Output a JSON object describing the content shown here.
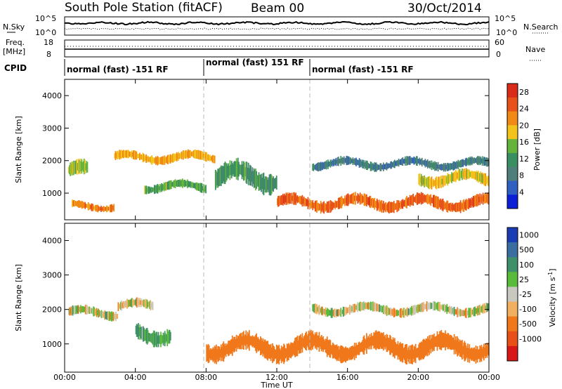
{
  "header": {
    "station": "South Pole Station (fitACF)",
    "beam": "Beam 00",
    "date": "30/Oct/2014"
  },
  "noise_panel": {
    "left_label": "N.Sky",
    "right_label": "N.Search",
    "left_ticks": [
      "10^5",
      "10^0"
    ],
    "right_ticks": [
      "10^5",
      "10^0"
    ]
  },
  "freq_panel": {
    "left_label": "Freq.",
    "left_unit": "[MHz]",
    "right_label": "Nave",
    "left_ticks": [
      "18",
      "8"
    ],
    "right_ticks": [
      "60",
      "0"
    ]
  },
  "cpid": {
    "label": "CPID",
    "segments": [
      {
        "text": "normal (fast) -151 RF",
        "start_hour": 0
      },
      {
        "text": "normal (fast) 151 RF",
        "start_hour": 8
      },
      {
        "text": "normal (fast) -151 RF",
        "start_hour": 14
      }
    ]
  },
  "colors": {
    "power_scale": [
      "#0b1fd6",
      "#2f5fc1",
      "#4f7f7a",
      "#3a8f62",
      "#66b33c",
      "#f2c31b",
      "#f08a14",
      "#e8521a",
      "#d92b1a"
    ],
    "velocity_scale": [
      "#1a3cb3",
      "#3a6ea0",
      "#3f8f6a",
      "#5aba3a",
      "#c8c8c0",
      "#f0b060",
      "#f0781a",
      "#e85018",
      "#d81818"
    ]
  },
  "chart_data": [
    {
      "type": "heatmap",
      "title": "Power",
      "xlabel": "Time UT",
      "ylabel": "Slant Range [km]",
      "xlim": [
        0,
        24
      ],
      "ylim": [
        180,
        4500
      ],
      "x_ticks": [
        "00:00",
        "04:00",
        "08:00",
        "12:00",
        "16:00",
        "20:00",
        "00:00"
      ],
      "y_ticks": [
        1000,
        2000,
        3000,
        4000
      ],
      "colorbar": {
        "label": "Power [dB]",
        "ticks": [
          4,
          8,
          12,
          16,
          20,
          24,
          28
        ],
        "range": [
          0,
          30
        ]
      },
      "features": [
        {
          "t0": 0.2,
          "t1": 1.3,
          "r_center": 1650,
          "r_width": 500,
          "level": 16
        },
        {
          "t0": 0.4,
          "t1": 2.8,
          "r_center": 600,
          "r_width": 250,
          "level": 22
        },
        {
          "t0": 2.8,
          "t1": 8.5,
          "r_center": 2100,
          "r_width": 300,
          "level": 20
        },
        {
          "t0": 4.5,
          "t1": 8.0,
          "r_center": 1200,
          "r_width": 300,
          "level": 14
        },
        {
          "t0": 8.5,
          "t1": 12.0,
          "r_center": 1500,
          "r_width": 700,
          "level": 12
        },
        {
          "t0": 12.0,
          "t1": 24.0,
          "r_center": 700,
          "r_width": 400,
          "level": 24
        },
        {
          "t0": 14.0,
          "t1": 24.0,
          "r_center": 1900,
          "r_width": 300,
          "level": 8
        },
        {
          "t0": 20.0,
          "t1": 24.0,
          "r_center": 1450,
          "r_width": 400,
          "level": 18
        }
      ],
      "vertical_markers_hours": [
        8,
        14
      ]
    },
    {
      "type": "heatmap",
      "title": "Velocity",
      "xlabel": "Time UT",
      "ylabel": "Slant Range [km]",
      "xlim": [
        0,
        24
      ],
      "ylim": [
        180,
        4500
      ],
      "x_ticks": [
        "00:00",
        "04:00",
        "08:00",
        "12:00",
        "16:00",
        "20:00",
        "00:00"
      ],
      "y_ticks": [
        1000,
        2000,
        3000,
        4000
      ],
      "colorbar": {
        "label": "Velocity [m s^-1]",
        "ticks": [
          1000,
          500,
          100,
          25,
          -25,
          -100,
          -500,
          -1000
        ]
      },
      "features": [
        {
          "t0": 0.2,
          "t1": 3.0,
          "r_center": 1900,
          "r_width": 300,
          "level": 0
        },
        {
          "t0": 3.0,
          "t1": 5.0,
          "r_center": 2100,
          "r_width": 300,
          "level": 0
        },
        {
          "t0": 4.0,
          "t1": 6.0,
          "r_center": 1300,
          "r_width": 500,
          "level": 120
        },
        {
          "t0": 8.0,
          "t1": 24.0,
          "r_center": 900,
          "r_width": 600,
          "level": -300
        },
        {
          "t0": 14.0,
          "t1": 24.0,
          "r_center": 2000,
          "r_width": 300,
          "level": 0
        }
      ],
      "vertical_markers_hours": [
        8,
        14
      ]
    }
  ],
  "x_axis": {
    "label": "Time UT",
    "ticks": [
      "00:00",
      "04:00",
      "08:00",
      "12:00",
      "16:00",
      "20:00",
      "00:00"
    ]
  }
}
